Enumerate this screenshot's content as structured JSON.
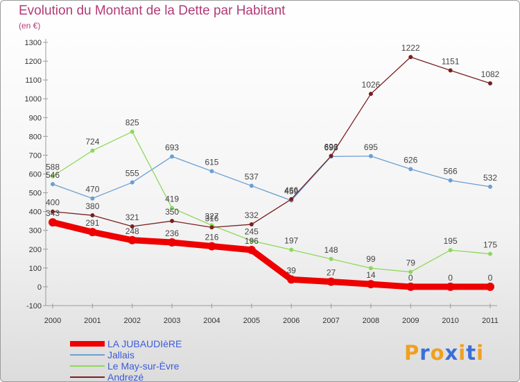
{
  "title": "Evolution du Montant de la Dette par Habitant",
  "subtitle": "(en €)",
  "logo": {
    "letters": [
      "P",
      "r",
      "o",
      "x",
      "i",
      "t",
      "i"
    ],
    "colors": [
      "#f0a020",
      "#3b6fd8",
      "#f0a020",
      "#3b6fd8",
      "#f0a020",
      "#3b6fd8",
      "#f0a020"
    ]
  },
  "chart_data": {
    "type": "line",
    "title": "Evolution du Montant de la Dette par Habitant",
    "unit_label": "(en €)",
    "x": [
      "2000",
      "2001",
      "2002",
      "2003",
      "2004",
      "2005",
      "2006",
      "2007",
      "2008",
      "2009",
      "2010",
      "2011"
    ],
    "ylim": [
      -100,
      1300
    ],
    "yticks": [
      "-100",
      "0",
      "100",
      "200",
      "300",
      "400",
      "500",
      "600",
      "700",
      "800",
      "900",
      "1000",
      "1100",
      "1200",
      "1300"
    ],
    "grid": false,
    "legend_position": "bottom-left",
    "series": [
      {
        "name": "LA JUBAUDIèRE",
        "color": "#ee0000",
        "values": [
          343,
          291,
          248,
          236,
          216,
          196,
          39,
          27,
          14,
          0,
          0,
          0
        ],
        "labels": [
          "343",
          "291",
          "248",
          "236",
          "216",
          "196",
          "39",
          "27",
          "14",
          "0",
          "0",
          "0"
        ]
      },
      {
        "name": "Jallais",
        "color": "#6a9fd4",
        "values": [
          546,
          470,
          555,
          693,
          615,
          537,
          459,
          693,
          695,
          626,
          566,
          532
        ],
        "labels": [
          "546",
          "470",
          "555",
          "693",
          "615",
          "537",
          "459",
          "693",
          "695",
          "626",
          "566",
          "532"
        ]
      },
      {
        "name": "Le May-sur-Èvre",
        "color": "#8ed858",
        "values": [
          588,
          724,
          825,
          419,
          327,
          245,
          197,
          148,
          99,
          79,
          195,
          175
        ],
        "labels": [
          "588",
          "724",
          "825",
          "419",
          "327",
          "245",
          "197",
          "148",
          "99",
          "79",
          "195",
          "175"
        ]
      },
      {
        "name": "Andrezé",
        "color": "#7a1f1f",
        "values": [
          400,
          380,
          321,
          350,
          316,
          332,
          466,
          696,
          1026,
          1222,
          1151,
          1082
        ],
        "labels": [
          "400",
          "380",
          "321",
          "350",
          "316",
          "332",
          "466",
          "696",
          "1026",
          "1222",
          "1151",
          "1082"
        ]
      }
    ]
  }
}
